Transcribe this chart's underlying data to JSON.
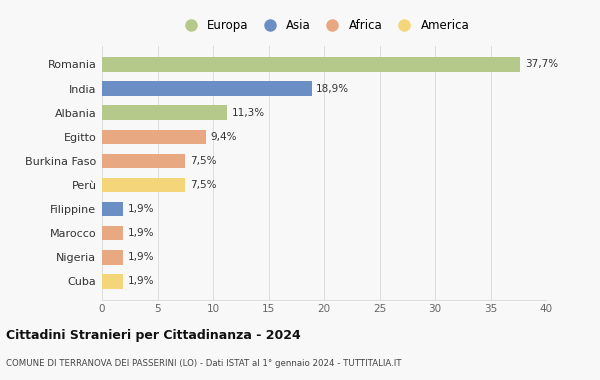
{
  "categories": [
    "Cuba",
    "Nigeria",
    "Marocco",
    "Filippine",
    "Perù",
    "Burkina Faso",
    "Egitto",
    "Albania",
    "India",
    "Romania"
  ],
  "values": [
    1.9,
    1.9,
    1.9,
    1.9,
    7.5,
    7.5,
    9.4,
    11.3,
    18.9,
    37.7
  ],
  "labels": [
    "1,9%",
    "1,9%",
    "1,9%",
    "1,9%",
    "7,5%",
    "7,5%",
    "9,4%",
    "11,3%",
    "18,9%",
    "37,7%"
  ],
  "colors": [
    "#f5d57a",
    "#e8a882",
    "#e8a882",
    "#6b8ec4",
    "#f5d57a",
    "#e8a882",
    "#e8a882",
    "#b5c98a",
    "#6b8ec4",
    "#b5c98a"
  ],
  "legend_labels": [
    "Europa",
    "Asia",
    "Africa",
    "America"
  ],
  "legend_colors": [
    "#b5c98a",
    "#6b8ec4",
    "#e8a882",
    "#f5d57a"
  ],
  "xlim": [
    0,
    40
  ],
  "xticks": [
    0,
    5,
    10,
    15,
    20,
    25,
    30,
    35,
    40
  ],
  "title": "Cittadini Stranieri per Cittadinanza - 2024",
  "subtitle": "COMUNE DI TERRANOVA DEI PASSERINI (LO) - Dati ISTAT al 1° gennaio 2024 - TUTTITALIA.IT",
  "bg_color": "#f8f8f8",
  "grid_color": "#dddddd",
  "bar_height": 0.6
}
